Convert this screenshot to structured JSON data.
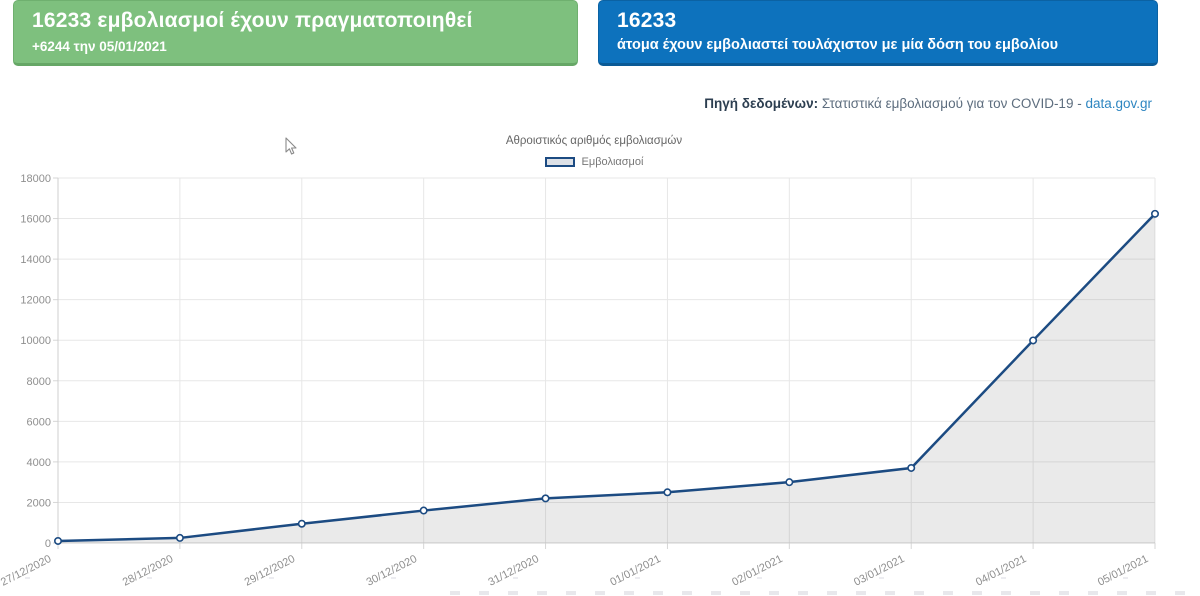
{
  "cards": {
    "green": {
      "title": "16233 εμβολιασμοί έχουν πραγματοποιηθεί",
      "subtitle": "+6244 την 05/01/2021",
      "bg": "#7ec07e"
    },
    "blue": {
      "title": "16233",
      "subtitle": "άτομα έχουν εμβολιαστεί τουλάχιστον με μία δόση του εμβολίου",
      "bg": "#0d72bd"
    }
  },
  "source": {
    "label": "Πηγή δεδομένων:",
    "text": " Στατιστικά εμβολιασμού για τον COVID-19 - ",
    "link": "data.gov.gr"
  },
  "chart_data": {
    "type": "area",
    "title": "Αθροιστικός αριθμός εμβολιασμών",
    "legend_position": "top",
    "grid": true,
    "categories": [
      "27/12/2020",
      "28/12/2020",
      "29/12/2020",
      "30/12/2020",
      "31/12/2020",
      "01/01/2021",
      "02/01/2021",
      "03/01/2021",
      "04/01/2021",
      "05/01/2021"
    ],
    "series": [
      {
        "name": "Εμβολιασμοί",
        "values": [
          100,
          250,
          950,
          1600,
          2200,
          2500,
          3000,
          3700,
          9989,
          16233
        ],
        "line_color": "#1c4b82",
        "fill_color": "rgba(115,115,115,0.15)",
        "marker_fill": "#ffffff"
      }
    ],
    "xlabel": "",
    "ylabel": "",
    "ylim": [
      0,
      18000
    ],
    "y_tick_step": 2000,
    "y_tick_labels": [
      "0",
      "2000",
      "4000",
      "6000",
      "8000",
      "10000",
      "12000",
      "14000",
      "16000",
      "18000"
    ]
  },
  "colors": {
    "gridline": "#e7e7e7",
    "axis_line": "#cfcfcf",
    "tick_mark": "#d6d6d6",
    "axis_label": "#8f8f8f",
    "chart_title": "#666666",
    "legend_label": "#777777",
    "link": "#2e86c1"
  }
}
